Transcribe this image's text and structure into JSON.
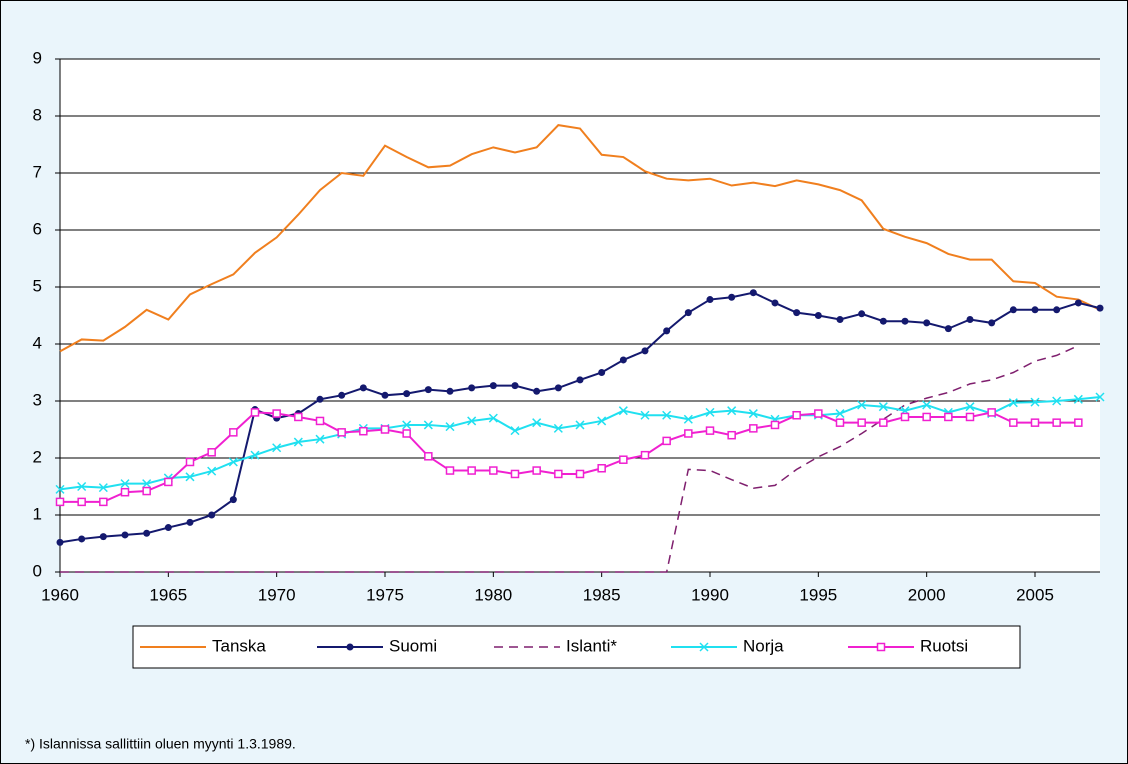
{
  "chart_data": {
    "type": "line",
    "footnote": "*) Islannissa sallittiin oluen myynti 1.3.1989.",
    "x": [
      1960,
      1961,
      1962,
      1963,
      1964,
      1965,
      1966,
      1967,
      1968,
      1969,
      1970,
      1971,
      1972,
      1973,
      1974,
      1975,
      1976,
      1977,
      1978,
      1979,
      1980,
      1981,
      1982,
      1983,
      1984,
      1985,
      1986,
      1987,
      1988,
      1989,
      1990,
      1991,
      1992,
      1993,
      1994,
      1995,
      1996,
      1997,
      1998,
      1999,
      2000,
      2001,
      2002,
      2003,
      2004,
      2005,
      2006,
      2007,
      2008
    ],
    "xlim": [
      1960,
      2008
    ],
    "xticks": [
      1960,
      1965,
      1970,
      1975,
      1980,
      1985,
      1990,
      1995,
      2000,
      2005
    ],
    "ylim": [
      0,
      9
    ],
    "yticks": [
      0,
      1,
      2,
      3,
      4,
      5,
      6,
      7,
      8,
      9
    ],
    "grid": true,
    "legend": "bottom",
    "series": [
      {
        "name": "Tanska",
        "color": "#f07f1e",
        "marker": "none",
        "dash": false,
        "values": [
          3.87,
          4.08,
          4.06,
          4.3,
          4.6,
          4.43,
          4.87,
          5.05,
          5.22,
          5.6,
          5.87,
          6.27,
          6.7,
          7.0,
          6.95,
          7.48,
          7.28,
          7.1,
          7.13,
          7.33,
          7.45,
          7.36,
          7.45,
          7.84,
          7.78,
          7.32,
          7.28,
          7.03,
          6.9,
          6.87,
          6.9,
          6.78,
          6.83,
          6.77,
          6.87,
          6.8,
          6.7,
          6.52,
          6.02,
          5.88,
          5.77,
          5.58,
          5.48,
          5.48,
          5.1,
          5.07,
          4.83,
          4.78,
          4.6
        ]
      },
      {
        "name": "Suomi",
        "color": "#14196e",
        "marker": "circle",
        "dash": false,
        "values": [
          0.52,
          0.58,
          0.62,
          0.65,
          0.68,
          0.78,
          0.87,
          1.0,
          1.27,
          2.85,
          2.7,
          2.78,
          3.03,
          3.1,
          3.23,
          3.1,
          3.13,
          3.2,
          3.17,
          3.23,
          3.27,
          3.27,
          3.17,
          3.23,
          3.37,
          3.5,
          3.72,
          3.88,
          4.23,
          4.55,
          4.78,
          4.82,
          4.9,
          4.72,
          4.55,
          4.5,
          4.43,
          4.53,
          4.4,
          4.4,
          4.37,
          4.27,
          4.43,
          4.37,
          4.6,
          4.6,
          4.6,
          4.72,
          4.63
        ]
      },
      {
        "name": "Islanti*",
        "color": "#7f1f6e",
        "marker": "none",
        "dash": true,
        "values": [
          0,
          0,
          0,
          0,
          0,
          0,
          0,
          0,
          0,
          0,
          0,
          0,
          0,
          0,
          0,
          0,
          0,
          0,
          0,
          0,
          0,
          0,
          0,
          0,
          0,
          0,
          0,
          0,
          0,
          1.8,
          1.78,
          1.62,
          1.47,
          1.52,
          1.8,
          2.02,
          2.2,
          2.43,
          2.68,
          2.93,
          3.05,
          3.15,
          3.3,
          3.37,
          3.5,
          3.7,
          3.8,
          3.97,
          null
        ]
      },
      {
        "name": "Norja",
        "color": "#20e0f0",
        "marker": "x",
        "dash": false,
        "values": [
          1.45,
          1.5,
          1.48,
          1.55,
          1.55,
          1.65,
          1.67,
          1.77,
          1.93,
          2.05,
          2.18,
          2.28,
          2.33,
          2.42,
          2.52,
          2.52,
          2.58,
          2.58,
          2.55,
          2.65,
          2.7,
          2.48,
          2.62,
          2.52,
          2.58,
          2.65,
          2.83,
          2.75,
          2.75,
          2.68,
          2.8,
          2.83,
          2.78,
          2.68,
          2.75,
          2.75,
          2.78,
          2.93,
          2.9,
          2.83,
          2.93,
          2.8,
          2.9,
          2.78,
          2.97,
          2.98,
          3.0,
          3.03,
          3.07
        ]
      },
      {
        "name": "Ruotsi",
        "color": "#f020d0",
        "marker": "square",
        "dash": false,
        "values": [
          1.23,
          1.23,
          1.23,
          1.4,
          1.42,
          1.58,
          1.93,
          2.1,
          2.45,
          2.8,
          2.78,
          2.72,
          2.65,
          2.45,
          2.47,
          2.5,
          2.43,
          2.03,
          1.78,
          1.78,
          1.78,
          1.72,
          1.78,
          1.72,
          1.72,
          1.82,
          1.97,
          2.05,
          2.3,
          2.43,
          2.48,
          2.4,
          2.52,
          2.58,
          2.75,
          2.78,
          2.62,
          2.62,
          2.62,
          2.72,
          2.72,
          2.72,
          2.72,
          2.8,
          2.62,
          2.62,
          2.62,
          2.62,
          null
        ]
      }
    ]
  }
}
